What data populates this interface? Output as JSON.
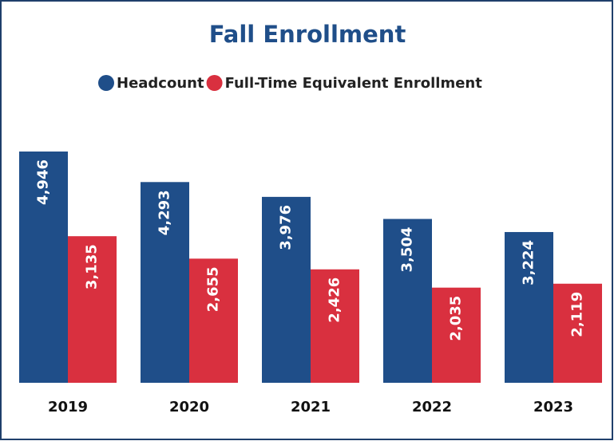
{
  "chart_data": {
    "type": "bar",
    "title": "Fall Enrollment",
    "categories": [
      "2019",
      "2020",
      "2021",
      "2022",
      "2023"
    ],
    "series": [
      {
        "name": "Headcount",
        "color": "#1f4e89",
        "values": [
          4946,
          4293,
          3976,
          3504,
          3224
        ],
        "value_labels": [
          "4,946",
          "4,293",
          "3,976",
          "3,504",
          "3,224"
        ]
      },
      {
        "name": "Full-Time Equivalent Enrollment",
        "color": "#d9303f",
        "values": [
          3135,
          2655,
          2426,
          2035,
          2119
        ],
        "value_labels": [
          "3,135",
          "2,655",
          "2,426",
          "2,035",
          "2,119"
        ]
      }
    ],
    "legend": "top"
  }
}
